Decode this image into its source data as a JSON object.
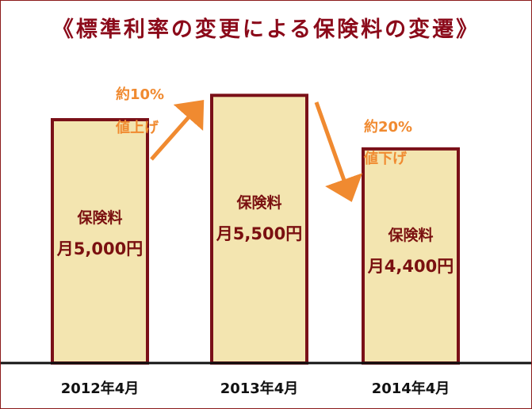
{
  "title": "《標準利率の変更による保険料の変遷》",
  "chart_data": {
    "type": "bar",
    "categories": [
      "2012年4月",
      "2013年4月",
      "2014年4月"
    ],
    "values": [
      5000,
      5500,
      4400
    ],
    "bar_titles": [
      "保険料",
      "保険料",
      "保険料"
    ],
    "value_labels": [
      "月5,000円",
      "月5,500円",
      "月4,400円"
    ],
    "annotations": [
      {
        "line1": "約10%",
        "line2": "値上げ"
      },
      {
        "line1": "約20%",
        "line2": "値下げ"
      }
    ],
    "colors": {
      "bar_fill": "#f3e5b0",
      "bar_border": "#7a1018",
      "label_text": "#7a1010",
      "arrow": "#f08a30",
      "title": "#8b0a1a"
    }
  }
}
